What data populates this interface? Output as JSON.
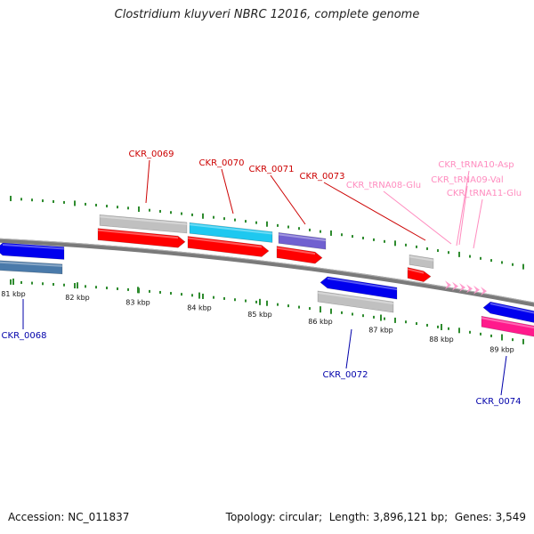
{
  "title": "Clostridium kluyveri NBRC 12016, complete genome",
  "footer": {
    "accession_label": "Accession:",
    "accession": "NC_011837",
    "topology_label": "Topology:",
    "topology": "circular",
    "length_label": "Length:",
    "length": "3,896,121 bp",
    "genes_label": "Genes:",
    "genes": "3,549"
  },
  "colors": {
    "backbone": "#808080",
    "tick": "#2e8b2e",
    "gray_feature": "#c0c0c0",
    "red_feature": "#ff0000",
    "blue_feature": "#0000ee",
    "cyan_feature": "#1ec8f0",
    "purple_feature": "#7060d0",
    "steel_feature": "#4a7aaa",
    "magenta_feature": "#ff1a8c",
    "trna": "#ff9ccc",
    "forward_label": "#cc0000",
    "reverse_label": "#0000aa",
    "trna_label": "#ff8cbf"
  },
  "kbp_ticks": [
    "81 kbp",
    "82 kbp",
    "83 kbp",
    "84 kbp",
    "85 kbp",
    "86 kbp",
    "87 kbp",
    "88 kbp",
    "89 kbp"
  ],
  "gene_labels": {
    "forward": [
      "CKR_0069",
      "CKR_0070",
      "CKR_0071",
      "CKR_0073"
    ],
    "reverse": [
      "CKR_0068",
      "CKR_0072",
      "CKR_0074"
    ],
    "trna": [
      "CKR_tRNA08-Glu",
      "CKR_tRNA09-Val",
      "CKR_tRNA10-Asp",
      "CKR_tRNA11-Glu"
    ]
  }
}
